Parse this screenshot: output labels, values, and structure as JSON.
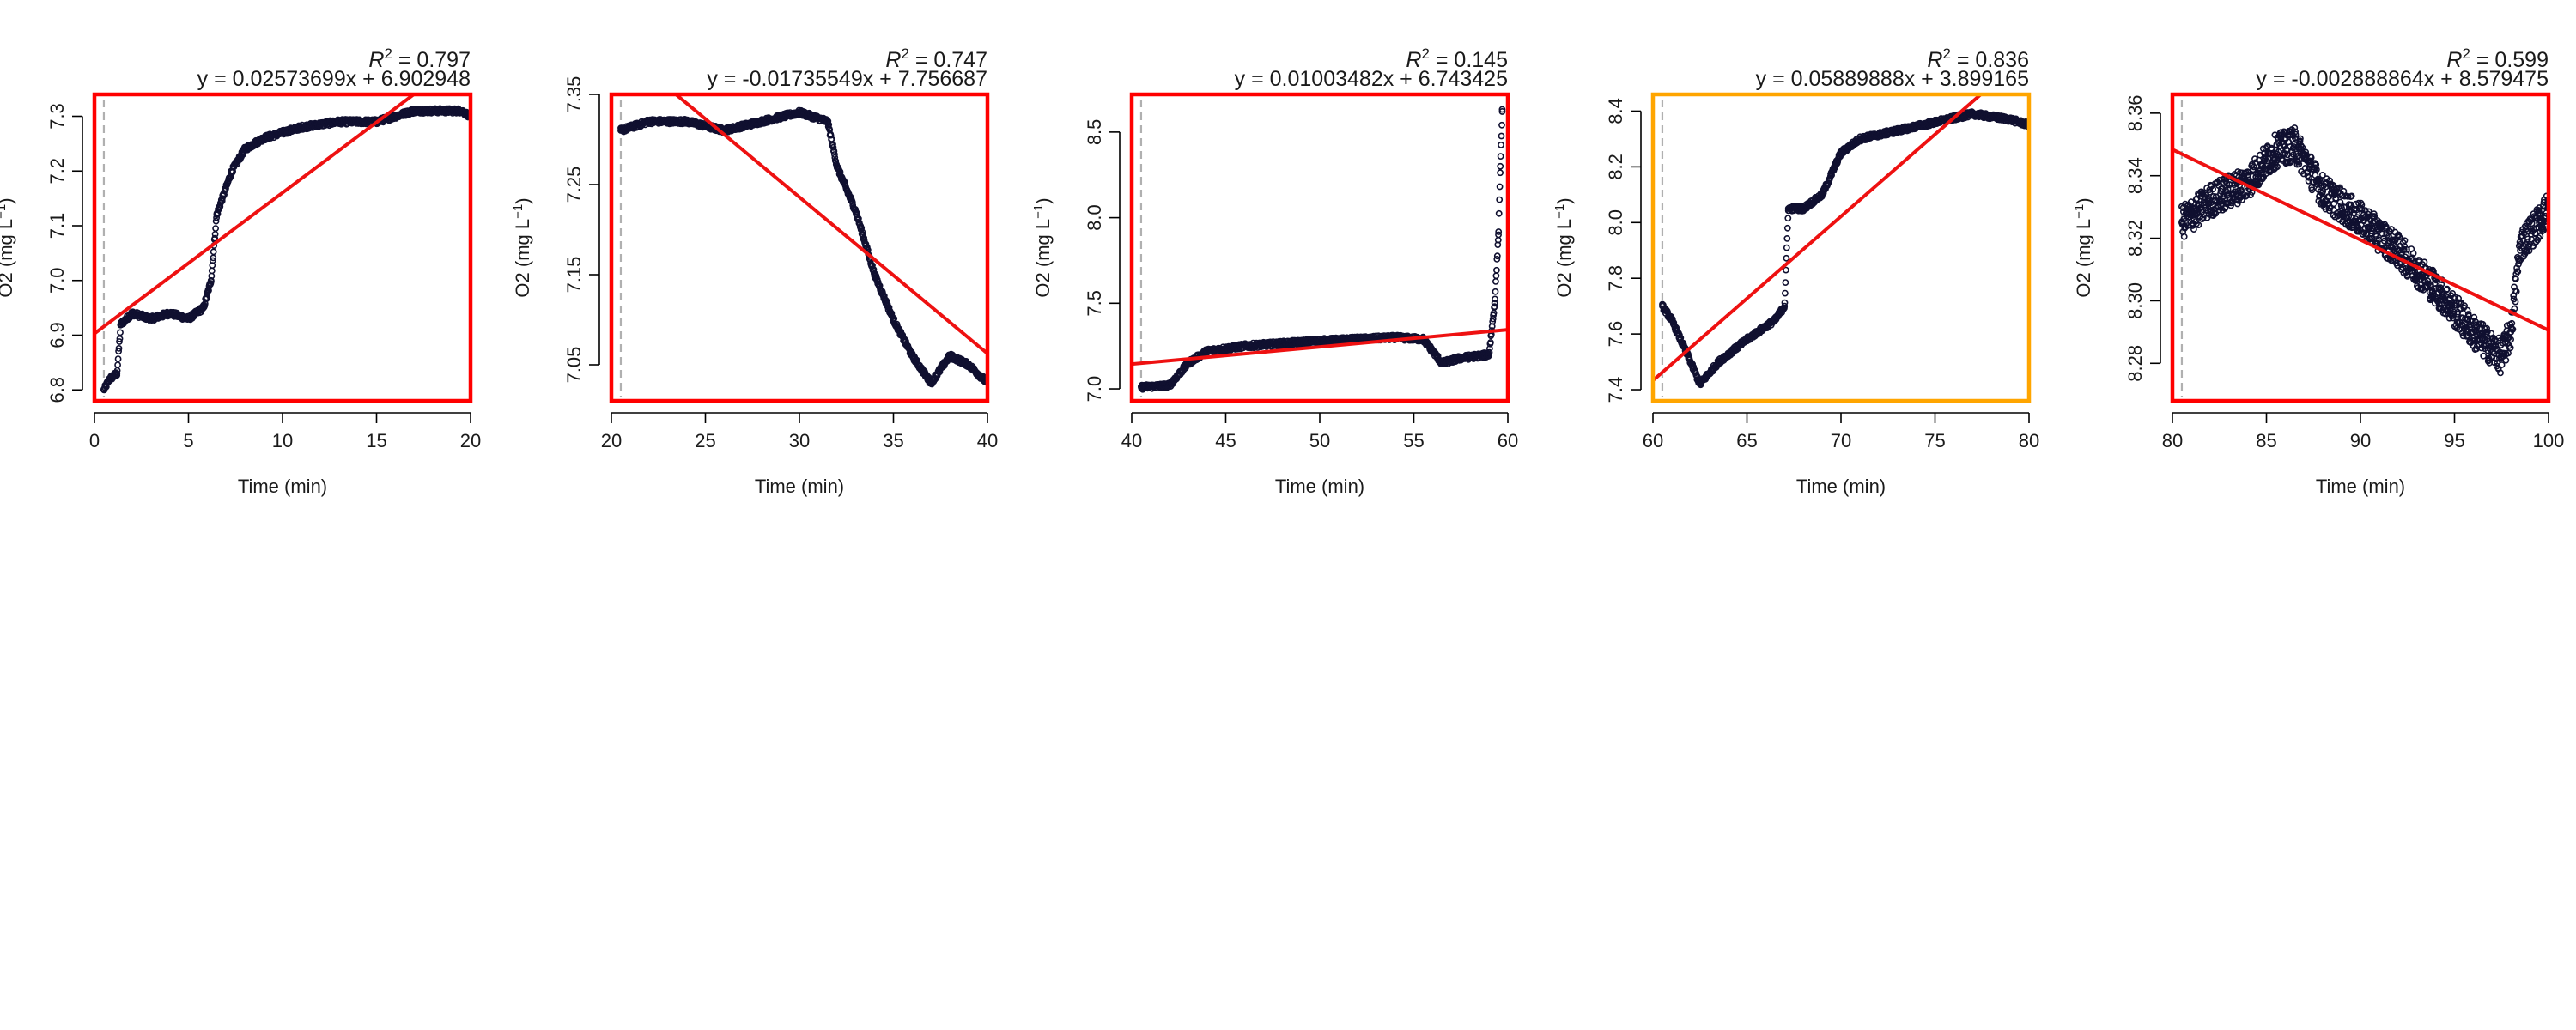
{
  "chart_data": [
    {
      "type": "scatter",
      "xlabel": "Time (min)",
      "ylabel": "O2 (mg L",
      "ylabel_sup": "−1",
      "ylabel_close": ")",
      "xlim": [
        0,
        20
      ],
      "ylim": [
        6.78,
        7.34
      ],
      "xticks": [
        0,
        5,
        10,
        15,
        20
      ],
      "yticks": [
        6.8,
        6.9,
        7.0,
        7.1,
        7.2,
        7.3
      ],
      "ytick_labels": [
        "6.8",
        "6.9",
        "7.0",
        "7.1",
        "7.2",
        "7.3"
      ],
      "r2_prefix": "R",
      "r2_sup": "2",
      "r2_value": " = 0.797",
      "equation": "y = 0.02573699x + 6.902948",
      "fit": {
        "slope": 0.02573699,
        "intercept": 6.902948
      },
      "frame_color": "#ff0000",
      "marker_x": 0.5,
      "series_points": [
        [
          0.5,
          6.8
        ],
        [
          0.8,
          6.82
        ],
        [
          1.2,
          6.83
        ],
        [
          1.4,
          6.92
        ],
        [
          2,
          6.94
        ],
        [
          3,
          6.93
        ],
        [
          4,
          6.94
        ],
        [
          5,
          6.93
        ],
        [
          5.8,
          6.95
        ],
        [
          6.2,
          7.0
        ],
        [
          6.5,
          7.12
        ],
        [
          6.8,
          7.15
        ],
        [
          7.3,
          7.2
        ],
        [
          8,
          7.24
        ],
        [
          9,
          7.26
        ],
        [
          10,
          7.27
        ],
        [
          11,
          7.28
        ],
        [
          13,
          7.29
        ],
        [
          15,
          7.29
        ],
        [
          17,
          7.31
        ],
        [
          18.5,
          7.31
        ],
        [
          19.5,
          7.31
        ],
        [
          20,
          7.3
        ]
      ]
    },
    {
      "type": "scatter",
      "xlabel": "Time (min)",
      "ylabel": "O2 (mg L",
      "ylabel_sup": "−1",
      "ylabel_close": ")",
      "xlim": [
        20,
        40
      ],
      "ylim": [
        7.01,
        7.35
      ],
      "xticks": [
        20,
        25,
        30,
        35,
        40
      ],
      "yticks": [
        7.05,
        7.15,
        7.25,
        7.35
      ],
      "ytick_labels": [
        "7.05",
        "7.15",
        "7.25",
        "7.35"
      ],
      "r2_prefix": "R",
      "r2_sup": "2",
      "r2_value": " = 0.747",
      "equation": "y = -0.01735549x + 7.756687",
      "fit": {
        "slope": -0.01735549,
        "intercept": 7.756687
      },
      "frame_color": "#ff0000",
      "marker_x": 20.5,
      "series_points": [
        [
          20.5,
          7.31
        ],
        [
          22,
          7.32
        ],
        [
          24,
          7.32
        ],
        [
          26,
          7.31
        ],
        [
          28,
          7.32
        ],
        [
          30,
          7.33
        ],
        [
          31.5,
          7.32
        ],
        [
          32,
          7.27
        ],
        [
          33,
          7.22
        ],
        [
          34,
          7.15
        ],
        [
          35,
          7.1
        ],
        [
          36,
          7.06
        ],
        [
          37,
          7.03
        ],
        [
          38,
          7.06
        ],
        [
          39,
          7.05
        ],
        [
          40,
          7.03
        ]
      ]
    },
    {
      "type": "scatter",
      "xlabel": "Time (min)",
      "ylabel": "O2 (mg L",
      "ylabel_sup": "−1",
      "ylabel_close": ")",
      "xlim": [
        40,
        60
      ],
      "ylim": [
        6.93,
        8.72
      ],
      "xticks": [
        40,
        45,
        50,
        55,
        60
      ],
      "yticks": [
        7.0,
        7.5,
        8.0,
        8.5
      ],
      "ytick_labels": [
        "7.0",
        "7.5",
        "8.0",
        "8.5"
      ],
      "r2_prefix": "R",
      "r2_sup": "2",
      "r2_value": " = 0.145",
      "equation": "y = 0.01003482x + 6.743425",
      "fit": {
        "slope": 0.01003482,
        "intercept": 6.743425
      },
      "frame_color": "#ff0000",
      "marker_x": 40.5,
      "series_points": [
        [
          40.5,
          7.01
        ],
        [
          42,
          7.02
        ],
        [
          43,
          7.15
        ],
        [
          44,
          7.22
        ],
        [
          46,
          7.25
        ],
        [
          50,
          7.28
        ],
        [
          54,
          7.3
        ],
        [
          55.5,
          7.29
        ],
        [
          56.5,
          7.15
        ],
        [
          57.5,
          7.18
        ],
        [
          59,
          7.2
        ],
        [
          59.3,
          7.5
        ],
        [
          59.5,
          7.9
        ],
        [
          59.6,
          8.3
        ],
        [
          59.7,
          8.62
        ]
      ]
    },
    {
      "type": "scatter",
      "xlabel": "Time (min)",
      "ylabel": "O2 (mg L",
      "ylabel_sup": "−1",
      "ylabel_close": ")",
      "xlim": [
        60,
        80
      ],
      "ylim": [
        7.36,
        8.46
      ],
      "xticks": [
        60,
        65,
        70,
        75,
        80
      ],
      "yticks": [
        7.4,
        7.6,
        7.8,
        8.0,
        8.2,
        8.4
      ],
      "ytick_labels": [
        "7.4",
        "7.6",
        "7.8",
        "8.0",
        "8.2",
        "8.4"
      ],
      "r2_prefix": "R",
      "r2_sup": "2",
      "r2_value": " = 0.836",
      "equation": "y = 0.05889888x + 3.899165",
      "fit": {
        "slope": 0.05889888,
        "intercept": 3.899165
      },
      "frame_color": "#ffa500",
      "marker_x": 60.5,
      "series_points": [
        [
          60.5,
          7.7
        ],
        [
          61,
          7.65
        ],
        [
          62,
          7.5
        ],
        [
          62.5,
          7.42
        ],
        [
          63.5,
          7.5
        ],
        [
          65,
          7.58
        ],
        [
          66.5,
          7.65
        ],
        [
          67,
          7.7
        ],
        [
          67.2,
          8.05
        ],
        [
          68,
          8.05
        ],
        [
          69,
          8.1
        ],
        [
          70,
          8.25
        ],
        [
          71,
          8.3
        ],
        [
          73,
          8.33
        ],
        [
          75,
          8.36
        ],
        [
          77,
          8.39
        ],
        [
          79,
          8.37
        ],
        [
          80,
          8.35
        ]
      ]
    },
    {
      "type": "scatter",
      "xlabel": "Time (min)",
      "ylabel": "O2 (mg L",
      "ylabel_sup": "−1",
      "ylabel_close": ")",
      "xlim": [
        80,
        100
      ],
      "ylim": [
        8.268,
        8.366
      ],
      "xticks": [
        80,
        85,
        90,
        95,
        100
      ],
      "yticks": [
        8.28,
        8.3,
        8.32,
        8.34,
        8.36
      ],
      "ytick_labels": [
        "8.28",
        "8.30",
        "8.32",
        "8.34",
        "8.36"
      ],
      "r2_prefix": "R",
      "r2_sup": "2",
      "r2_value": " = 0.599",
      "equation": "y = -0.002888864x + 8.579475",
      "fit": {
        "slope": -0.002888864,
        "intercept": 8.579475
      },
      "frame_color": "#ff0000",
      "marker_x": 80.5,
      "series_points": [
        [
          80.5,
          8.325
        ],
        [
          82,
          8.332
        ],
        [
          84,
          8.338
        ],
        [
          85.5,
          8.348
        ],
        [
          86.5,
          8.35
        ],
        [
          88,
          8.335
        ],
        [
          90,
          8.326
        ],
        [
          92,
          8.316
        ],
        [
          94,
          8.304
        ],
        [
          96,
          8.29
        ],
        [
          97.5,
          8.282
        ],
        [
          98,
          8.29
        ],
        [
          98.5,
          8.318
        ],
        [
          99.5,
          8.325
        ],
        [
          100,
          8.33
        ]
      ]
    }
  ]
}
